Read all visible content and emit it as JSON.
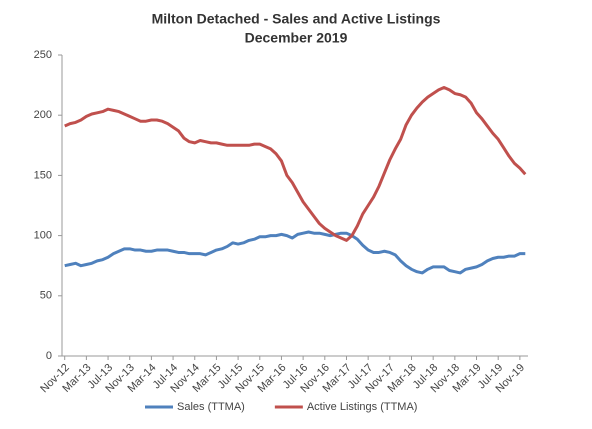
{
  "chart_data": {
    "type": "line",
    "title": "Milton Detached - Sales and Active Listings",
    "subtitle": "December 2019",
    "categories": [
      "Nov-12",
      null,
      null,
      null,
      "Mar-13",
      null,
      null,
      null,
      "Jul-13",
      null,
      null,
      null,
      "Nov-13",
      null,
      null,
      null,
      "Mar-14",
      null,
      null,
      null,
      "Jul-14",
      null,
      null,
      null,
      "Nov-14",
      null,
      null,
      null,
      "Mar-15",
      null,
      null,
      null,
      "Jul-15",
      null,
      null,
      null,
      "Nov-15",
      null,
      null,
      null,
      "Mar-16",
      null,
      null,
      null,
      "Jul-16",
      null,
      null,
      null,
      "Nov-16",
      null,
      null,
      null,
      "Mar-17",
      null,
      null,
      null,
      "Jul-17",
      null,
      null,
      null,
      "Nov-17",
      null,
      null,
      null,
      "Mar-18",
      null,
      null,
      null,
      "Jul-18",
      null,
      null,
      null,
      "Nov-18",
      null,
      null,
      null,
      "Mar-19",
      null,
      null,
      null,
      "Jul-19",
      null,
      null,
      null,
      "Nov-19",
      null
    ],
    "series": [
      {
        "name": "Sales (TTMA)",
        "color": "#4f81bd",
        "values": [
          75,
          76,
          77,
          75,
          76,
          77,
          79,
          80,
          82,
          85,
          87,
          89,
          89,
          88,
          88,
          87,
          87,
          88,
          88,
          88,
          87,
          86,
          86,
          85,
          85,
          85,
          84,
          86,
          88,
          89,
          91,
          94,
          93,
          94,
          96,
          97,
          99,
          99,
          100,
          100,
          101,
          100,
          98,
          101,
          102,
          103,
          102,
          102,
          101,
          100,
          101,
          102,
          102,
          100,
          97,
          92,
          88,
          86,
          86,
          87,
          86,
          84,
          79,
          75,
          72,
          70,
          69,
          72,
          74,
          74,
          74,
          71,
          70,
          69,
          72,
          73,
          74,
          76,
          79,
          81,
          82,
          82,
          83,
          83,
          85,
          85
        ]
      },
      {
        "name": "Active Listings (TTMA)",
        "color": "#c0504d",
        "values": [
          191,
          193,
          194,
          196,
          199,
          201,
          202,
          203,
          205,
          204,
          203,
          201,
          199,
          197,
          195,
          195,
          196,
          196,
          195,
          193,
          190,
          187,
          181,
          178,
          177,
          179,
          178,
          177,
          177,
          176,
          175,
          175,
          175,
          175,
          175,
          176,
          176,
          174,
          172,
          168,
          162,
          150,
          144,
          136,
          128,
          122,
          116,
          110,
          106,
          103,
          100,
          98,
          96,
          100,
          108,
          118,
          125,
          132,
          141,
          152,
          163,
          172,
          180,
          192,
          200,
          206,
          211,
          215,
          218,
          221,
          223,
          221,
          218,
          217,
          215,
          210,
          202,
          197,
          191,
          185,
          180,
          173,
          166,
          160,
          156,
          151
        ]
      }
    ],
    "ylim": [
      0,
      250
    ],
    "yticks": [
      0,
      50,
      100,
      150,
      200,
      250
    ],
    "grid": false,
    "legend": "bottom"
  }
}
